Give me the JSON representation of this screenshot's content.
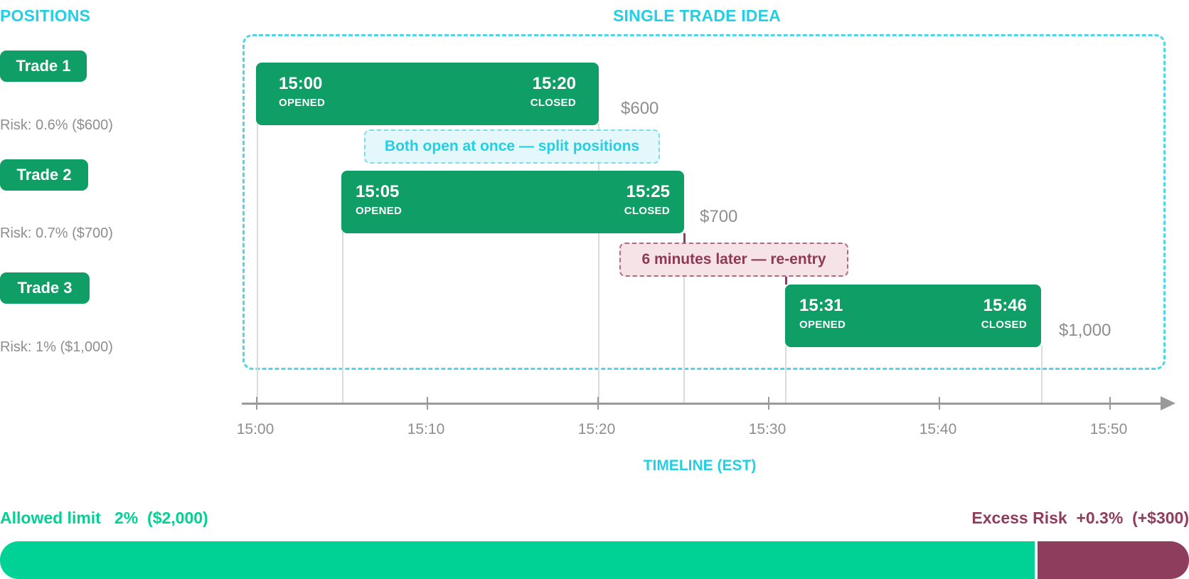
{
  "positions": {
    "title": "POSITIONS",
    "trades": [
      {
        "label": "Trade 1",
        "risk": "Risk: 0.6% ($600)"
      },
      {
        "label": "Trade 2",
        "risk": "Risk: 0.7% ($700)"
      },
      {
        "label": "Trade 3",
        "risk": "Risk: 1% ($1,000)"
      }
    ]
  },
  "idea": {
    "title": "SINGLE TRADE IDEA",
    "bars": [
      {
        "open_time": "15:00",
        "open_caption": "OPENED",
        "close_time": "15:20",
        "close_caption": "CLOSED",
        "amount": "$600"
      },
      {
        "open_time": "15:05",
        "open_caption": "OPENED",
        "close_time": "15:25",
        "close_caption": "CLOSED",
        "amount": "$700"
      },
      {
        "open_time": "15:31",
        "open_caption": "OPENED",
        "close_time": "15:46",
        "close_caption": "CLOSED",
        "amount": "$1,000"
      }
    ],
    "callouts": {
      "overlap": "Both open at once — split positions",
      "reentry": "6 minutes later — re-entry"
    }
  },
  "timeline": {
    "label": "TIMELINE (EST)",
    "ticks": [
      "15:00",
      "15:10",
      "15:20",
      "15:30",
      "15:40",
      "15:50"
    ]
  },
  "limit_bar": {
    "allowed_label": "Allowed limit   2%  ($2,000)",
    "excess_label": "Excess Risk  +0.3%  (+$300)",
    "allowed_fraction": 0.87,
    "excess_fraction": 0.13,
    "colors": {
      "allowed": "#00d195",
      "excess": "#8f3d5c"
    }
  },
  "colors": {
    "accent": "#22cfe4",
    "trade": "#0f9e66",
    "excess": "#8f3d5c"
  }
}
